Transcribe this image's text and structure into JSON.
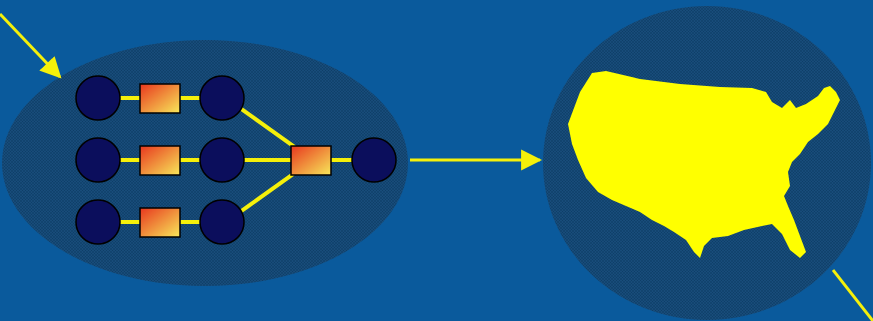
{
  "colors": {
    "background": "#0a5a9c",
    "ellipse_fill": "#1a4f7e",
    "ellipse_hatch": "#0d3d66",
    "node_fill": "#0b0e5c",
    "node_stroke": "#000000",
    "connector": "#f5f00a",
    "box_gradient_start": "#e8361e",
    "box_gradient_end": "#f7e85a",
    "map_fill": "#ffff00"
  },
  "icons": {
    "map": "united-states-map-icon",
    "node": "circle-node-icon",
    "process": "gradient-box-icon"
  },
  "diagram": {
    "rows": 3,
    "nodes_per_row": 2,
    "final_nodes": 1,
    "shows_input_arrow": true,
    "shows_transfer_arrow": true,
    "shows_output_arrow": true
  }
}
